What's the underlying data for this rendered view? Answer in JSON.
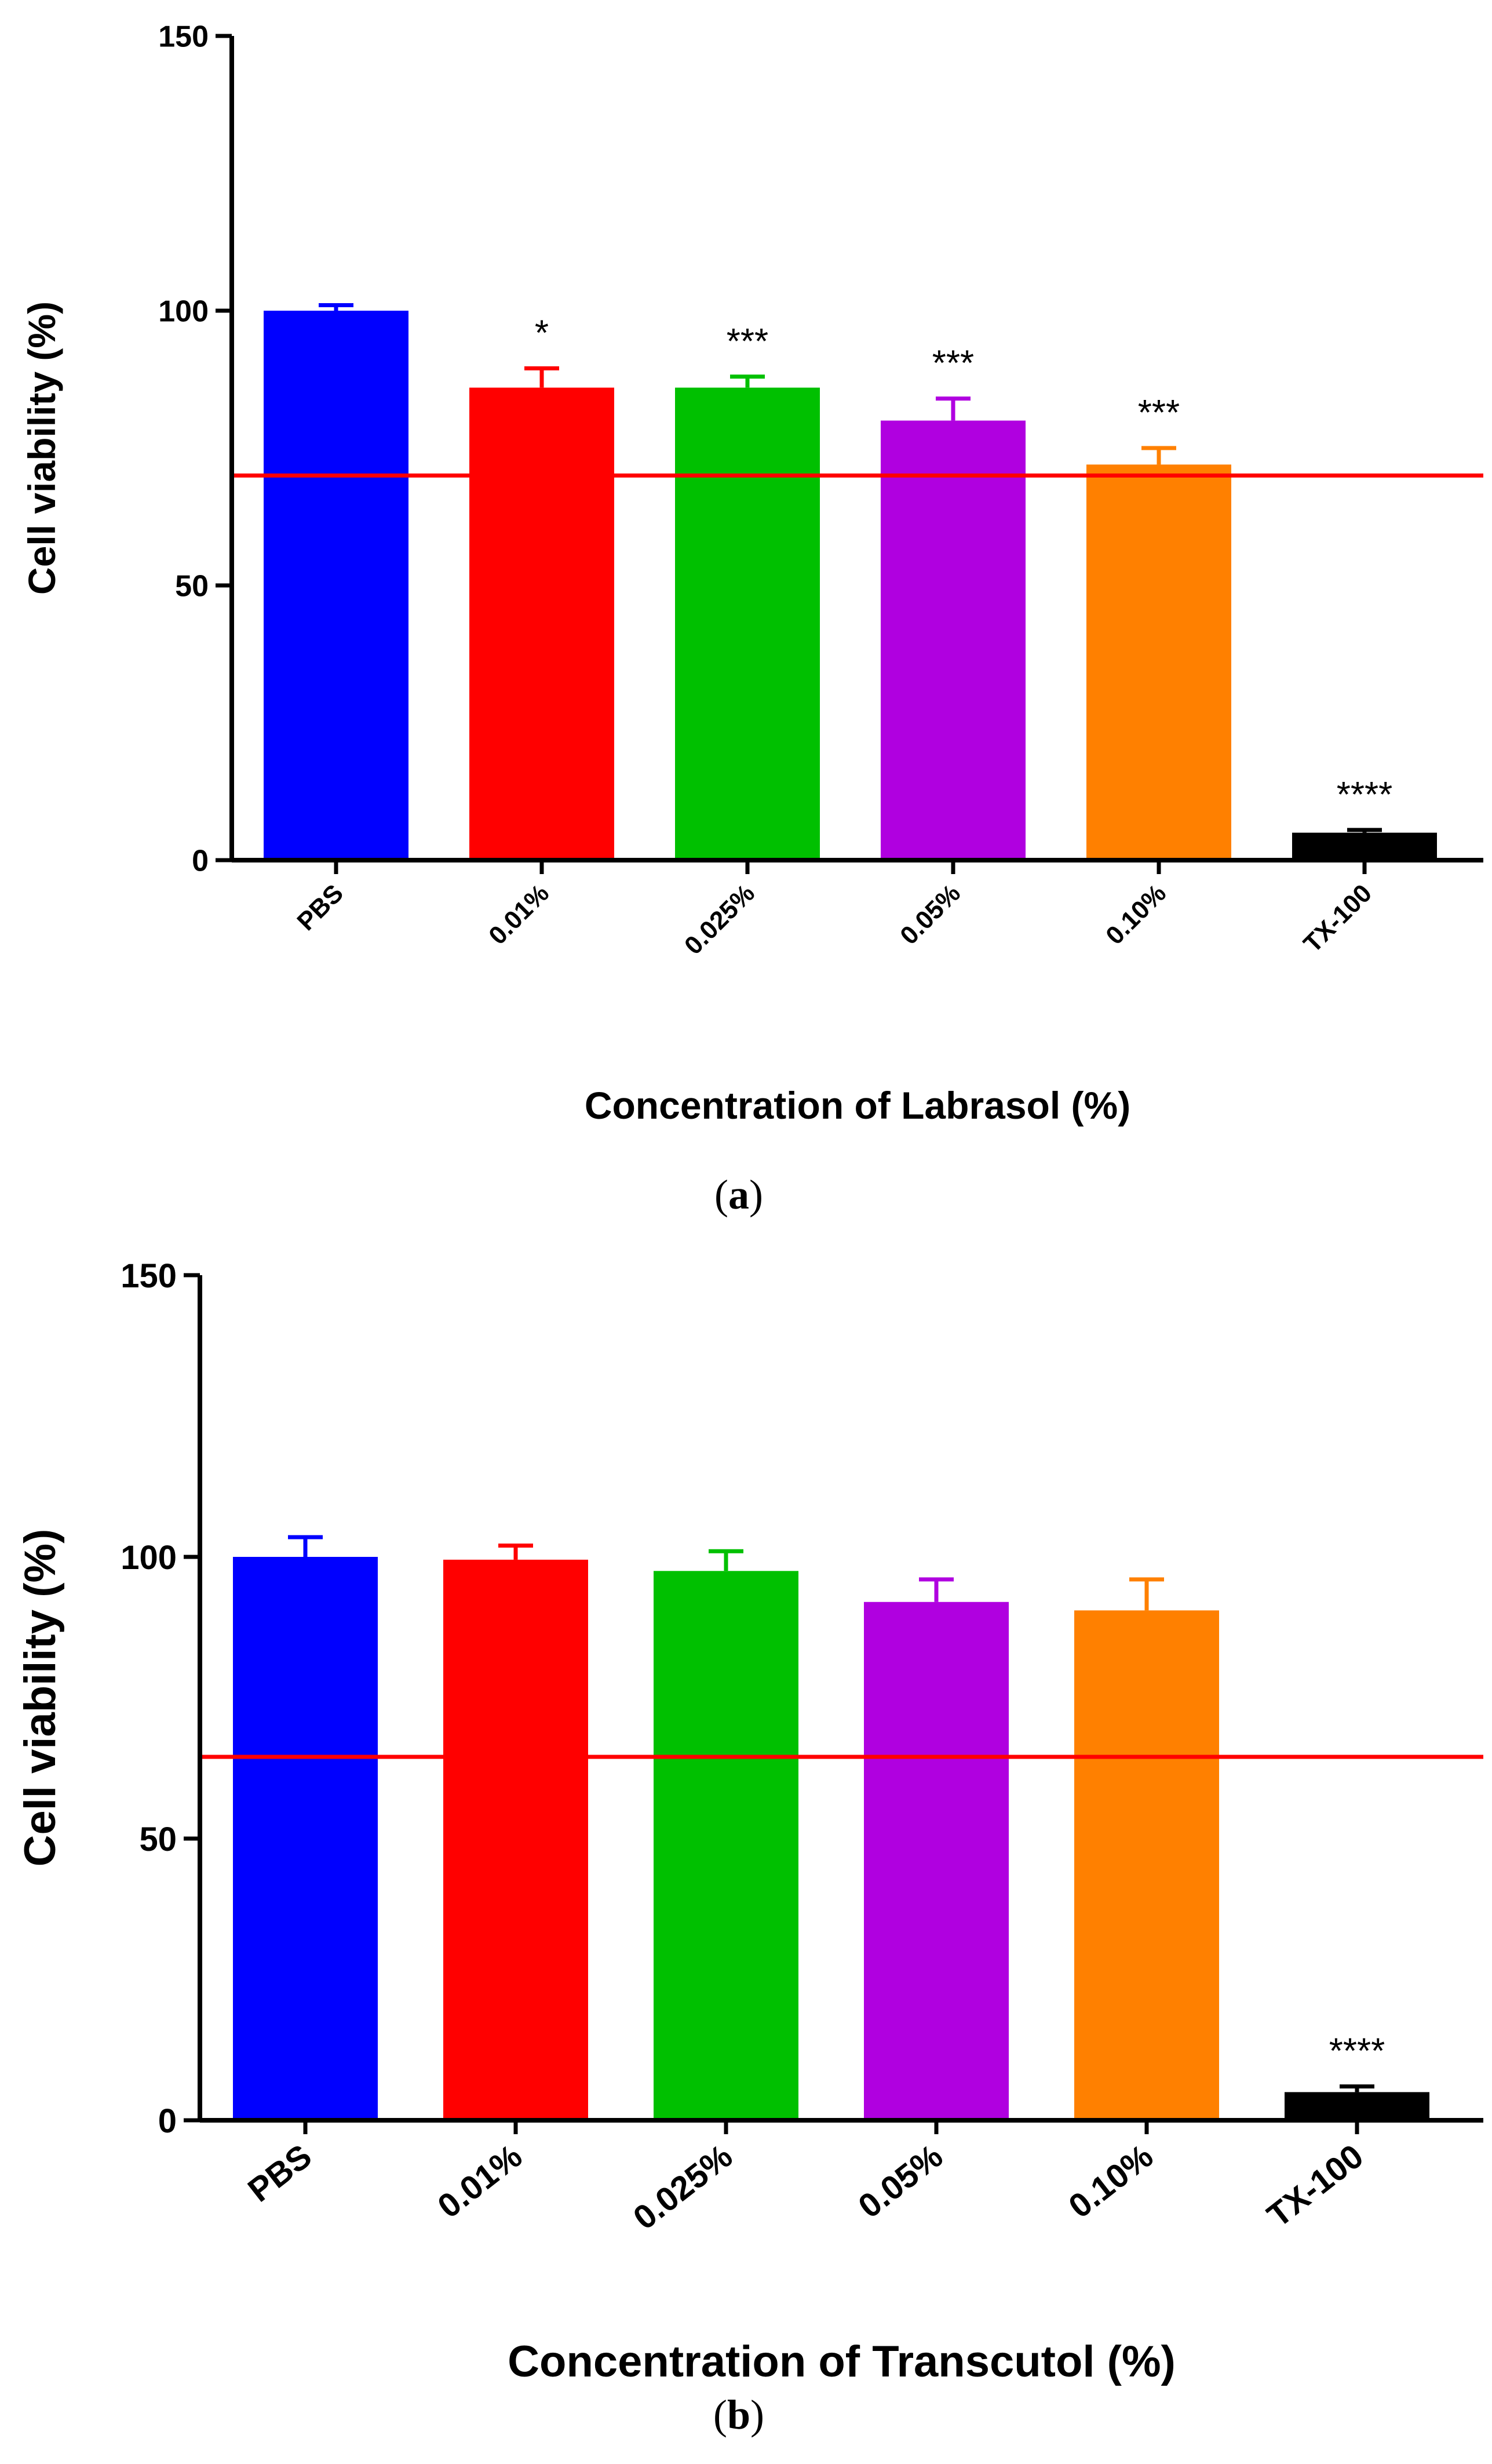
{
  "chart_data": [
    {
      "type": "bar",
      "panel_label": "a",
      "xlabel": "Concentration of Labrasol (%)",
      "ylabel": "Cell viability (%)",
      "ylim": [
        0,
        150
      ],
      "yticks": [
        0,
        50,
        100,
        150
      ],
      "categories": [
        "PBS",
        "0.01%",
        "0.025%",
        "0.05%",
        "0.10%",
        "TX-100"
      ],
      "values": [
        100,
        86,
        86,
        80,
        72,
        5
      ],
      "errors": [
        1,
        3.5,
        2,
        4,
        3,
        0.5
      ],
      "colors": [
        "#0000ff",
        "#ff0000",
        "#00c000",
        "#b000e0",
        "#ff8000",
        "#000000"
      ],
      "significance": [
        "",
        "*",
        "***",
        "***",
        "***",
        "****"
      ],
      "reference_line": {
        "y": 70,
        "color": "#ff0000"
      },
      "grid": false
    },
    {
      "type": "bar",
      "panel_label": "b",
      "xlabel": "Concentration of Transcutol (%)",
      "ylabel": "Cell viability (%)",
      "ylim": [
        0,
        150
      ],
      "yticks": [
        0,
        50,
        100,
        150
      ],
      "categories": [
        "PBS",
        "0.01%",
        "0.025%",
        "0.05%",
        "0.10%",
        "TX-100"
      ],
      "values": [
        100,
        99.5,
        97.5,
        92,
        90.5,
        5
      ],
      "errors": [
        3.5,
        2.5,
        3.5,
        4,
        5.5,
        1
      ],
      "colors": [
        "#0000ff",
        "#ff0000",
        "#00c000",
        "#b000e0",
        "#ff8000",
        "#000000"
      ],
      "significance": [
        "",
        "",
        "",
        "",
        "",
        "****"
      ],
      "reference_line": {
        "y": 64.5,
        "color": "#ff0000"
      },
      "grid": false
    }
  ]
}
